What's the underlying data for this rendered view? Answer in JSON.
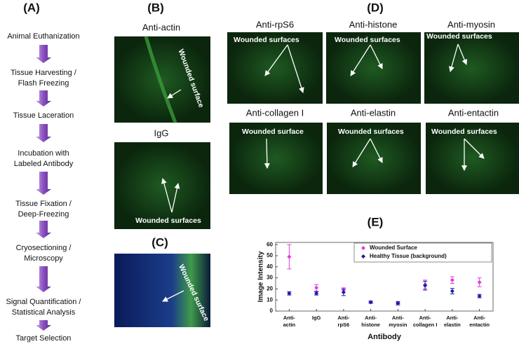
{
  "panels": {
    "A": {
      "label": "(A)",
      "steps": [
        [
          "Animal Euthanization"
        ],
        [
          "Tissue Harvesting /",
          "Flash Freezing"
        ],
        [
          "Tissue Laceration"
        ],
        [
          "Incubation with",
          "Labeled Antibody"
        ],
        [
          "Tissue Fixation /",
          "Deep-Freezing"
        ],
        [
          "Cryosectioning /",
          "Microscopy"
        ],
        [
          "Signal Quantification /",
          "Statistical Analysis"
        ],
        [
          "Target Selection"
        ]
      ]
    },
    "B": {
      "label": "(B)",
      "images": [
        {
          "title": "Anti-actin",
          "annotation": "Wounded surface"
        },
        {
          "title": "IgG",
          "annotation": "Wounded surfaces"
        }
      ]
    },
    "C": {
      "label": "(C)",
      "annotation": "Wounded surface"
    },
    "D": {
      "label": "(D)",
      "images": [
        {
          "title": "Anti-rpS6",
          "annotation": "Wounded surfaces"
        },
        {
          "title": "Anti-histone",
          "annotation": "Wounded surfaces"
        },
        {
          "title": "Anti-myosin",
          "annotation": "Wounded surfaces"
        },
        {
          "title": "Anti-collagen I",
          "annotation": "Wounded surface"
        },
        {
          "title": "Anti-elastin",
          "annotation": "Wounded surfaces"
        },
        {
          "title": "Anti-entactin",
          "annotation": "Wounded surfaces"
        }
      ]
    },
    "E": {
      "label": "(E)"
    }
  },
  "chart_data": {
    "type": "scatter",
    "ylabel": "Image Intensity",
    "xlabel": "Antibody",
    "categories": [
      [
        "Anti-",
        "actin"
      ],
      [
        "IgG"
      ],
      [
        "Anti-",
        "rpS6"
      ],
      [
        "Anti-",
        "histone"
      ],
      [
        "Anti-",
        "myosin"
      ],
      [
        "Anti-",
        "collagen I"
      ],
      [
        "Anti-",
        "elastin"
      ],
      [
        "Anti-",
        "entactin"
      ]
    ],
    "series": [
      {
        "name": "Wounded Surface",
        "color": "#e23be2",
        "values": [
          49,
          21,
          19,
          8,
          7.5,
          24,
          28,
          26
        ],
        "errors": [
          11,
          3,
          2,
          1,
          1,
          4,
          3,
          4
        ]
      },
      {
        "name": "Healthy Tissue (background)",
        "color": "#1c1ca8",
        "values": [
          16,
          16,
          17,
          8,
          7,
          23,
          18,
          13.5
        ],
        "errors": [
          1.5,
          1.5,
          3,
          1,
          1.5,
          4,
          2.5,
          1.5
        ]
      }
    ],
    "ylim": [
      0,
      62
    ],
    "yticks": [
      0,
      10,
      20,
      30,
      40,
      50,
      60
    ],
    "legend": "upper right"
  }
}
